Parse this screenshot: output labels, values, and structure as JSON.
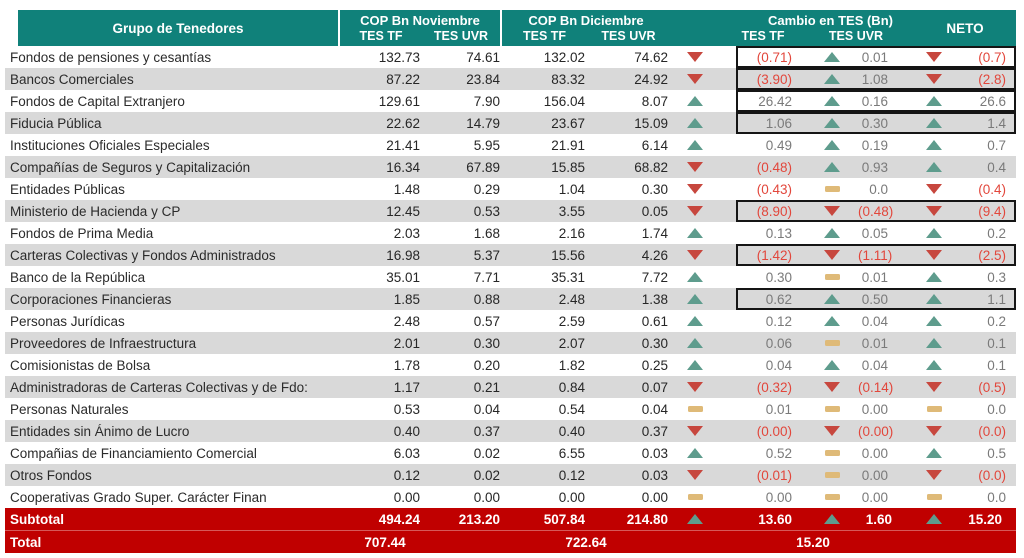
{
  "header": {
    "group": "Grupo de Tenedores",
    "nov": "COP Bn Noviembre",
    "dic": "COP Bn Diciembre",
    "cambio": "Cambio en TES (Bn)",
    "neto": "NETO",
    "tf": "TES TF",
    "uvr": "TES UVR"
  },
  "colors": {
    "header_teal": "#10817A",
    "total_red": "#C00000",
    "stripe_gray": "#D9D9D9",
    "up_arrow": "#5E9C8D",
    "down_arrow": "#C7473E",
    "flat_dash": "#DFBA78",
    "positive_text": "#7A7A7A",
    "negative_text": "#E2473C"
  },
  "chart_data": {
    "type": "table",
    "title": "",
    "column_groups": [
      "Grupo de Tenedores",
      "COP Bn Noviembre",
      "COP Bn Diciembre",
      "Cambio en TES (Bn)",
      "NETO"
    ],
    "columns": [
      "Grupo de Tenedores",
      "Noviembre TES TF",
      "Noviembre TES UVR",
      "Diciembre TES TF",
      "Diciembre TES UVR",
      "Cambio TES TF",
      "Cambio TES UVR",
      "NETO"
    ],
    "rows": [
      {
        "grupo": "Fondos de pensiones y cesantías",
        "nov_tf": "132.73",
        "nov_uvr": "74.61",
        "dic_tf": "132.02",
        "dic_uvr": "74.62",
        "tf_dir": "down",
        "tf": "(0.71)",
        "uvr_dir": "up",
        "uvr": "0.01",
        "neto_dir": "down",
        "neto": "(0.7)",
        "boxed": true
      },
      {
        "grupo": "Bancos Comerciales",
        "nov_tf": "87.22",
        "nov_uvr": "23.84",
        "dic_tf": "83.32",
        "dic_uvr": "24.92",
        "tf_dir": "down",
        "tf": "(3.90)",
        "uvr_dir": "up",
        "uvr": "1.08",
        "neto_dir": "down",
        "neto": "(2.8)",
        "boxed": true
      },
      {
        "grupo": "Fondos de Capital Extranjero",
        "nov_tf": "129.61",
        "nov_uvr": "7.90",
        "dic_tf": "156.04",
        "dic_uvr": "8.07",
        "tf_dir": "up",
        "tf": "26.42",
        "uvr_dir": "up",
        "uvr": "0.16",
        "neto_dir": "up",
        "neto": "26.6",
        "boxed": true
      },
      {
        "grupo": "Fiducia Pública",
        "nov_tf": "22.62",
        "nov_uvr": "14.79",
        "dic_tf": "23.67",
        "dic_uvr": "15.09",
        "tf_dir": "up",
        "tf": "1.06",
        "uvr_dir": "up",
        "uvr": "0.30",
        "neto_dir": "up",
        "neto": "1.4",
        "boxed": true
      },
      {
        "grupo": "Instituciones Oficiales Especiales",
        "nov_tf": "21.41",
        "nov_uvr": "5.95",
        "dic_tf": "21.91",
        "dic_uvr": "6.14",
        "tf_dir": "up",
        "tf": "0.49",
        "uvr_dir": "up",
        "uvr": "0.19",
        "neto_dir": "up",
        "neto": "0.7",
        "boxed": false
      },
      {
        "grupo": "Compañías de Seguros y Capitalización",
        "nov_tf": "16.34",
        "nov_uvr": "67.89",
        "dic_tf": "15.85",
        "dic_uvr": "68.82",
        "tf_dir": "down",
        "tf": "(0.48)",
        "uvr_dir": "up",
        "uvr": "0.93",
        "neto_dir": "up",
        "neto": "0.4",
        "boxed": false
      },
      {
        "grupo": "Entidades Públicas",
        "nov_tf": "1.48",
        "nov_uvr": "0.29",
        "dic_tf": "1.04",
        "dic_uvr": "0.30",
        "tf_dir": "down",
        "tf": "(0.43)",
        "uvr_dir": "flat",
        "uvr": "0.0",
        "neto_dir": "down",
        "neto": "(0.4)",
        "boxed": false
      },
      {
        "grupo": "Ministerio de Hacienda y CP",
        "nov_tf": "12.45",
        "nov_uvr": "0.53",
        "dic_tf": "3.55",
        "dic_uvr": "0.05",
        "tf_dir": "down",
        "tf": "(8.90)",
        "uvr_dir": "down",
        "uvr": "(0.48)",
        "neto_dir": "down",
        "neto": "(9.4)",
        "boxed": true
      },
      {
        "grupo": "Fondos de Prima Media",
        "nov_tf": "2.03",
        "nov_uvr": "1.68",
        "dic_tf": "2.16",
        "dic_uvr": "1.74",
        "tf_dir": "up",
        "tf": "0.13",
        "uvr_dir": "up",
        "uvr": "0.05",
        "neto_dir": "up",
        "neto": "0.2",
        "boxed": false
      },
      {
        "grupo": "Carteras Colectivas y Fondos Administrados",
        "nov_tf": "16.98",
        "nov_uvr": "5.37",
        "dic_tf": "15.56",
        "dic_uvr": "4.26",
        "tf_dir": "down",
        "tf": "(1.42)",
        "uvr_dir": "down",
        "uvr": "(1.11)",
        "neto_dir": "down",
        "neto": "(2.5)",
        "boxed": true
      },
      {
        "grupo": "Banco de la República",
        "nov_tf": "35.01",
        "nov_uvr": "7.71",
        "dic_tf": "35.31",
        "dic_uvr": "7.72",
        "tf_dir": "up",
        "tf": "0.30",
        "uvr_dir": "flat",
        "uvr": "0.01",
        "neto_dir": "up",
        "neto": "0.3",
        "boxed": false
      },
      {
        "grupo": "Corporaciones Financieras",
        "nov_tf": "1.85",
        "nov_uvr": "0.88",
        "dic_tf": "2.48",
        "dic_uvr": "1.38",
        "tf_dir": "up",
        "tf": "0.62",
        "uvr_dir": "up",
        "uvr": "0.50",
        "neto_dir": "up",
        "neto": "1.1",
        "boxed": true
      },
      {
        "grupo": "Personas Jurídicas",
        "nov_tf": "2.48",
        "nov_uvr": "0.57",
        "dic_tf": "2.59",
        "dic_uvr": "0.61",
        "tf_dir": "up",
        "tf": "0.12",
        "uvr_dir": "up",
        "uvr": "0.04",
        "neto_dir": "up",
        "neto": "0.2",
        "boxed": false
      },
      {
        "grupo": "Proveedores de Infraestructura",
        "nov_tf": "2.01",
        "nov_uvr": "0.30",
        "dic_tf": "2.07",
        "dic_uvr": "0.30",
        "tf_dir": "up",
        "tf": "0.06",
        "uvr_dir": "flat",
        "uvr": "0.01",
        "neto_dir": "up",
        "neto": "0.1",
        "boxed": false
      },
      {
        "grupo": "Comisionistas de Bolsa",
        "nov_tf": "1.78",
        "nov_uvr": "0.20",
        "dic_tf": "1.82",
        "dic_uvr": "0.25",
        "tf_dir": "up",
        "tf": "0.04",
        "uvr_dir": "up",
        "uvr": "0.04",
        "neto_dir": "up",
        "neto": "0.1",
        "boxed": false
      },
      {
        "grupo": "Administradoras de Carteras Colectivas y de Fdo:",
        "nov_tf": "1.17",
        "nov_uvr": "0.21",
        "dic_tf": "0.84",
        "dic_uvr": "0.07",
        "tf_dir": "down",
        "tf": "(0.32)",
        "uvr_dir": "down",
        "uvr": "(0.14)",
        "neto_dir": "down",
        "neto": "(0.5)",
        "boxed": false
      },
      {
        "grupo": "Personas Naturales",
        "nov_tf": "0.53",
        "nov_uvr": "0.04",
        "dic_tf": "0.54",
        "dic_uvr": "0.04",
        "tf_dir": "flat",
        "tf": "0.01",
        "uvr_dir": "flat",
        "uvr": "0.00",
        "neto_dir": "flat",
        "neto": "0.0",
        "boxed": false
      },
      {
        "grupo": "Entidades sin Ánimo de Lucro",
        "nov_tf": "0.40",
        "nov_uvr": "0.37",
        "dic_tf": "0.40",
        "dic_uvr": "0.37",
        "tf_dir": "down",
        "tf": "(0.00)",
        "uvr_dir": "down",
        "uvr": "(0.00)",
        "neto_dir": "down",
        "neto": "(0.0)",
        "boxed": false
      },
      {
        "grupo": "Compañias de Financiamiento Comercial",
        "nov_tf": "6.03",
        "nov_uvr": "0.02",
        "dic_tf": "6.55",
        "dic_uvr": "0.03",
        "tf_dir": "up",
        "tf": "0.52",
        "uvr_dir": "flat",
        "uvr": "0.00",
        "neto_dir": "up",
        "neto": "0.5",
        "boxed": false
      },
      {
        "grupo": "Otros Fondos",
        "nov_tf": "0.12",
        "nov_uvr": "0.02",
        "dic_tf": "0.12",
        "dic_uvr": "0.03",
        "tf_dir": "down",
        "tf": "(0.01)",
        "uvr_dir": "flat",
        "uvr": "0.00",
        "neto_dir": "down",
        "neto": "(0.0)",
        "boxed": false
      },
      {
        "grupo": "Cooperativas Grado Super. Carácter Finan",
        "nov_tf": "0.00",
        "nov_uvr": "0.00",
        "dic_tf": "0.00",
        "dic_uvr": "0.00",
        "tf_dir": "flat",
        "tf": "0.00",
        "uvr_dir": "flat",
        "uvr": "0.00",
        "neto_dir": "flat",
        "neto": "0.0",
        "boxed": false
      }
    ],
    "subtotal": {
      "label": "Subtotal",
      "nov_tf": "494.24",
      "nov_uvr": "213.20",
      "dic_tf": "507.84",
      "dic_uvr": "214.80",
      "tf_dir": "up",
      "tf": "13.60",
      "uvr_dir": "up",
      "uvr": "1.60",
      "neto_dir": "up",
      "neto": "15.20"
    },
    "total": {
      "label": "Total",
      "nov": "707.44",
      "dic": "722.64",
      "cambio": "15.20"
    }
  }
}
